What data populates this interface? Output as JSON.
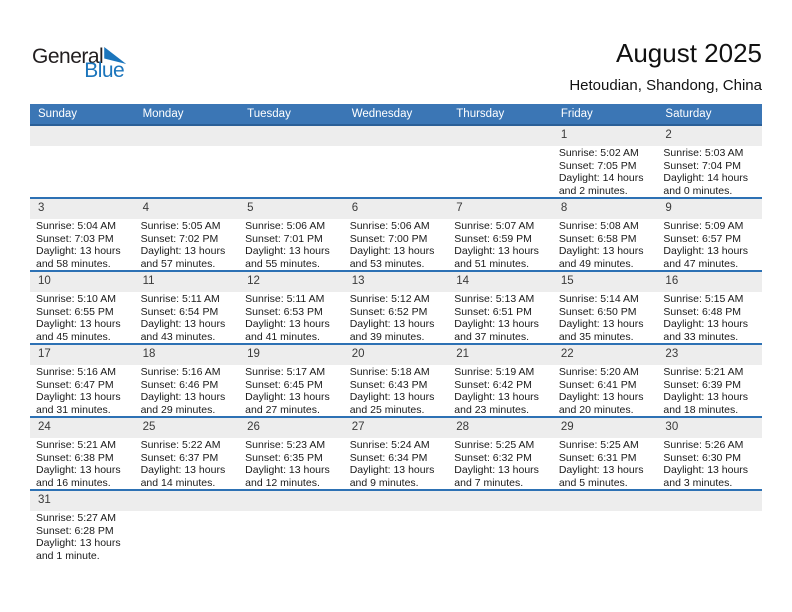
{
  "logo": {
    "part1": "General",
    "part2": "Blue",
    "triangle_icon": "blue-right-triangle"
  },
  "title": "August 2025",
  "location": "Hetoudian, Shandong, China",
  "colors": {
    "header_bg": "#3b76b5",
    "row_border": "#2d71b4",
    "number_band_bg": "#ededed",
    "logo_blue": "#1b75bc",
    "weekday_text": "#ffffff",
    "body_text": "#1a1a1a"
  },
  "calendar": {
    "weekdays": [
      "Sunday",
      "Monday",
      "Tuesday",
      "Wednesday",
      "Thursday",
      "Friday",
      "Saturday"
    ],
    "weeks": [
      [
        null,
        null,
        null,
        null,
        null,
        {
          "day": "1",
          "sunrise": "Sunrise: 5:02 AM",
          "sunset": "Sunset: 7:05 PM",
          "daylight": [
            "Daylight: 14 hours",
            "and 2 minutes."
          ]
        },
        {
          "day": "2",
          "sunrise": "Sunrise: 5:03 AM",
          "sunset": "Sunset: 7:04 PM",
          "daylight": [
            "Daylight: 14 hours",
            "and 0 minutes."
          ]
        }
      ],
      [
        {
          "day": "3",
          "sunrise": "Sunrise: 5:04 AM",
          "sunset": "Sunset: 7:03 PM",
          "daylight": [
            "Daylight: 13 hours",
            "and 58 minutes."
          ]
        },
        {
          "day": "4",
          "sunrise": "Sunrise: 5:05 AM",
          "sunset": "Sunset: 7:02 PM",
          "daylight": [
            "Daylight: 13 hours",
            "and 57 minutes."
          ]
        },
        {
          "day": "5",
          "sunrise": "Sunrise: 5:06 AM",
          "sunset": "Sunset: 7:01 PM",
          "daylight": [
            "Daylight: 13 hours",
            "and 55 minutes."
          ]
        },
        {
          "day": "6",
          "sunrise": "Sunrise: 5:06 AM",
          "sunset": "Sunset: 7:00 PM",
          "daylight": [
            "Daylight: 13 hours",
            "and 53 minutes."
          ]
        },
        {
          "day": "7",
          "sunrise": "Sunrise: 5:07 AM",
          "sunset": "Sunset: 6:59 PM",
          "daylight": [
            "Daylight: 13 hours",
            "and 51 minutes."
          ]
        },
        {
          "day": "8",
          "sunrise": "Sunrise: 5:08 AM",
          "sunset": "Sunset: 6:58 PM",
          "daylight": [
            "Daylight: 13 hours",
            "and 49 minutes."
          ]
        },
        {
          "day": "9",
          "sunrise": "Sunrise: 5:09 AM",
          "sunset": "Sunset: 6:57 PM",
          "daylight": [
            "Daylight: 13 hours",
            "and 47 minutes."
          ]
        }
      ],
      [
        {
          "day": "10",
          "sunrise": "Sunrise: 5:10 AM",
          "sunset": "Sunset: 6:55 PM",
          "daylight": [
            "Daylight: 13 hours",
            "and 45 minutes."
          ]
        },
        {
          "day": "11",
          "sunrise": "Sunrise: 5:11 AM",
          "sunset": "Sunset: 6:54 PM",
          "daylight": [
            "Daylight: 13 hours",
            "and 43 minutes."
          ]
        },
        {
          "day": "12",
          "sunrise": "Sunrise: 5:11 AM",
          "sunset": "Sunset: 6:53 PM",
          "daylight": [
            "Daylight: 13 hours",
            "and 41 minutes."
          ]
        },
        {
          "day": "13",
          "sunrise": "Sunrise: 5:12 AM",
          "sunset": "Sunset: 6:52 PM",
          "daylight": [
            "Daylight: 13 hours",
            "and 39 minutes."
          ]
        },
        {
          "day": "14",
          "sunrise": "Sunrise: 5:13 AM",
          "sunset": "Sunset: 6:51 PM",
          "daylight": [
            "Daylight: 13 hours",
            "and 37 minutes."
          ]
        },
        {
          "day": "15",
          "sunrise": "Sunrise: 5:14 AM",
          "sunset": "Sunset: 6:50 PM",
          "daylight": [
            "Daylight: 13 hours",
            "and 35 minutes."
          ]
        },
        {
          "day": "16",
          "sunrise": "Sunrise: 5:15 AM",
          "sunset": "Sunset: 6:48 PM",
          "daylight": [
            "Daylight: 13 hours",
            "and 33 minutes."
          ]
        }
      ],
      [
        {
          "day": "17",
          "sunrise": "Sunrise: 5:16 AM",
          "sunset": "Sunset: 6:47 PM",
          "daylight": [
            "Daylight: 13 hours",
            "and 31 minutes."
          ]
        },
        {
          "day": "18",
          "sunrise": "Sunrise: 5:16 AM",
          "sunset": "Sunset: 6:46 PM",
          "daylight": [
            "Daylight: 13 hours",
            "and 29 minutes."
          ]
        },
        {
          "day": "19",
          "sunrise": "Sunrise: 5:17 AM",
          "sunset": "Sunset: 6:45 PM",
          "daylight": [
            "Daylight: 13 hours",
            "and 27 minutes."
          ]
        },
        {
          "day": "20",
          "sunrise": "Sunrise: 5:18 AM",
          "sunset": "Sunset: 6:43 PM",
          "daylight": [
            "Daylight: 13 hours",
            "and 25 minutes."
          ]
        },
        {
          "day": "21",
          "sunrise": "Sunrise: 5:19 AM",
          "sunset": "Sunset: 6:42 PM",
          "daylight": [
            "Daylight: 13 hours",
            "and 23 minutes."
          ]
        },
        {
          "day": "22",
          "sunrise": "Sunrise: 5:20 AM",
          "sunset": "Sunset: 6:41 PM",
          "daylight": [
            "Daylight: 13 hours",
            "and 20 minutes."
          ]
        },
        {
          "day": "23",
          "sunrise": "Sunrise: 5:21 AM",
          "sunset": "Sunset: 6:39 PM",
          "daylight": [
            "Daylight: 13 hours",
            "and 18 minutes."
          ]
        }
      ],
      [
        {
          "day": "24",
          "sunrise": "Sunrise: 5:21 AM",
          "sunset": "Sunset: 6:38 PM",
          "daylight": [
            "Daylight: 13 hours",
            "and 16 minutes."
          ]
        },
        {
          "day": "25",
          "sunrise": "Sunrise: 5:22 AM",
          "sunset": "Sunset: 6:37 PM",
          "daylight": [
            "Daylight: 13 hours",
            "and 14 minutes."
          ]
        },
        {
          "day": "26",
          "sunrise": "Sunrise: 5:23 AM",
          "sunset": "Sunset: 6:35 PM",
          "daylight": [
            "Daylight: 13 hours",
            "and 12 minutes."
          ]
        },
        {
          "day": "27",
          "sunrise": "Sunrise: 5:24 AM",
          "sunset": "Sunset: 6:34 PM",
          "daylight": [
            "Daylight: 13 hours",
            "and 9 minutes."
          ]
        },
        {
          "day": "28",
          "sunrise": "Sunrise: 5:25 AM",
          "sunset": "Sunset: 6:32 PM",
          "daylight": [
            "Daylight: 13 hours",
            "and 7 minutes."
          ]
        },
        {
          "day": "29",
          "sunrise": "Sunrise: 5:25 AM",
          "sunset": "Sunset: 6:31 PM",
          "daylight": [
            "Daylight: 13 hours",
            "and 5 minutes."
          ]
        },
        {
          "day": "30",
          "sunrise": "Sunrise: 5:26 AM",
          "sunset": "Sunset: 6:30 PM",
          "daylight": [
            "Daylight: 13 hours",
            "and 3 minutes."
          ]
        }
      ],
      [
        {
          "day": "31",
          "sunrise": "Sunrise: 5:27 AM",
          "sunset": "Sunset: 6:28 PM",
          "daylight": [
            "Daylight: 13 hours",
            "and 1 minute."
          ]
        },
        null,
        null,
        null,
        null,
        null,
        null
      ]
    ]
  }
}
